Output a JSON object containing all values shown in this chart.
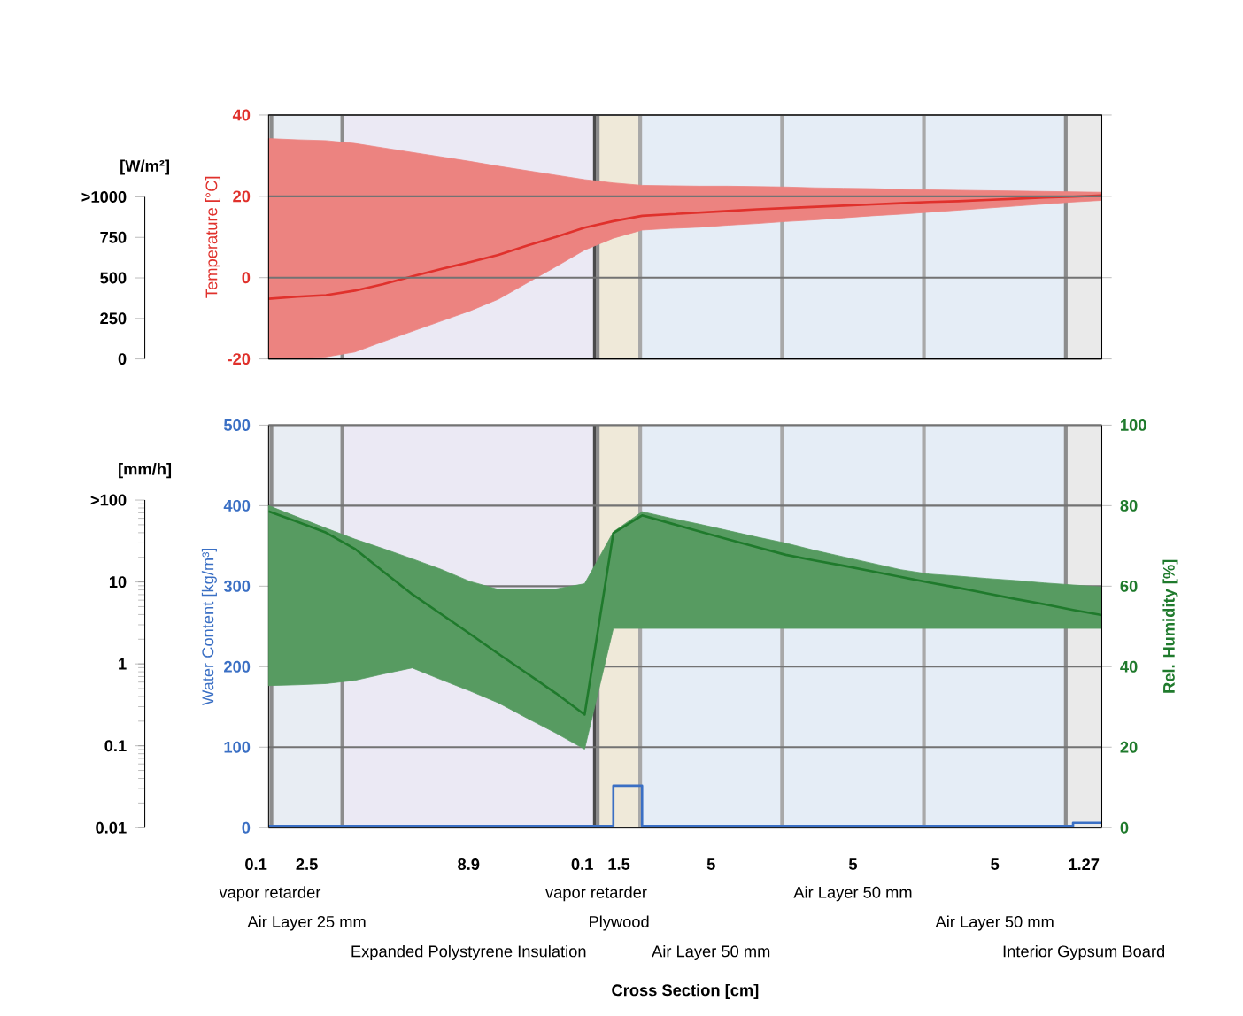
{
  "chart_data": [
    {
      "type": "line",
      "ylabel": "Temperature [°C]",
      "y3label": "[W/m²]",
      "categories": [
        null,
        null,
        null,
        null,
        null,
        null,
        null,
        null,
        null,
        null,
        null,
        null,
        null,
        null,
        null,
        null,
        null,
        null,
        null,
        null,
        null,
        null,
        null,
        null,
        null,
        null,
        null,
        null,
        null,
        null
      ],
      "series": [
        {
          "color": "#e0312c",
          "values": [
            -5.2,
            -4.7,
            -4.3,
            -3.2,
            -1.6,
            0.3,
            2.1,
            3.8,
            5.6,
            7.9,
            10.0,
            12.3,
            13.9,
            15.2,
            15.6,
            16.0,
            16.4,
            16.8,
            17.1,
            17.4,
            17.7,
            18.0,
            18.3,
            18.6,
            18.8,
            19.1,
            19.4,
            19.7,
            19.9,
            20.2
          ],
          "upper": [
            34.2,
            33.9,
            33.7,
            33.0,
            31.9,
            30.8,
            29.7,
            28.6,
            27.4,
            26.3,
            25.2,
            24.1,
            23.3,
            22.7,
            22.6,
            22.5,
            22.5,
            22.4,
            22.3,
            22.1,
            22.0,
            21.9,
            21.7,
            21.6,
            21.5,
            21.4,
            21.3,
            21.2,
            21.1,
            21.0
          ],
          "lower": [
            -20,
            -19.8,
            -19.5,
            -18.3,
            -15.7,
            -13.2,
            -10.7,
            -8.2,
            -5.3,
            -1.3,
            2.7,
            6.8,
            9.7,
            11.7,
            12.1,
            12.4,
            12.9,
            13.3,
            13.8,
            14.2,
            14.7,
            15.2,
            15.6,
            16.1,
            16.6,
            17.1,
            17.6,
            18.1,
            18.6,
            19.0
          ]
        }
      ],
      "ylim": [
        -20,
        40
      ],
      "yticks": [
        -20,
        0,
        20,
        40
      ],
      "y3lim": [
        0,
        1000
      ],
      "y3ticks": [
        0,
        250,
        500,
        750,
        {
          "value": 1000,
          "label": ">1000"
        }
      ],
      "grid": "y"
    },
    {
      "type": "line",
      "ylabel": "Water Content [kg/m³]",
      "y2label": "Rel. Humidity [%]",
      "y3label": "[mm/h]",
      "xlabel": "Cross Section [cm]",
      "categories": [
        null,
        null,
        null,
        null,
        null,
        null,
        null,
        null,
        null,
        null,
        null,
        null,
        null,
        null,
        null,
        null,
        null,
        null,
        null,
        null,
        null,
        null,
        null,
        null,
        null,
        null,
        null,
        null,
        null,
        null
      ],
      "series": [
        {
          "color": "#3a6fc4",
          "type": "step",
          "values": [
            2,
            2,
            2,
            2,
            2,
            2,
            2,
            2,
            2,
            2,
            2,
            2,
            52,
            2,
            2,
            2,
            2,
            2,
            2,
            2,
            2,
            2,
            2,
            2,
            2,
            2,
            2,
            2,
            6,
            6
          ]
        },
        {
          "color": "#1f7a2c",
          "axis": "y2",
          "values": [
            78.6,
            76.0,
            73.3,
            69.3,
            63.6,
            58.0,
            53.1,
            48.2,
            43.2,
            38.3,
            33.4,
            28.1,
            73.2,
            77.6,
            75.6,
            73.6,
            71.6,
            69.7,
            67.8,
            66.4,
            65.1,
            63.7,
            62.3,
            60.9,
            59.6,
            58.2,
            56.8,
            55.5,
            54.1,
            52.8
          ],
          "upper": [
            80,
            77.2,
            74.4,
            71.7,
            69.3,
            66.8,
            64.2,
            61.2,
            59.2,
            59.2,
            59.3,
            60.6,
            73.5,
            78.5,
            76.9,
            75.4,
            73.8,
            72.2,
            70.7,
            68.9,
            67.3,
            65.7,
            64.1,
            63.0,
            62.5,
            61.9,
            61.4,
            60.8,
            60.3,
            59.8
          ],
          "lower": [
            35.3,
            35.5,
            35.8,
            36.6,
            38.2,
            39.7,
            36.8,
            34.0,
            31.0,
            27.2,
            23.5,
            19.5,
            49.5,
            49.5,
            49.5,
            49.5,
            49.5,
            49.5,
            49.5,
            49.5,
            49.5,
            49.5,
            49.5,
            49.5,
            49.5,
            49.5,
            49.5,
            49.5,
            49.5,
            49.5
          ]
        }
      ],
      "ylim": [
        0,
        500
      ],
      "yticks": [
        0,
        100,
        200,
        300,
        400,
        500
      ],
      "y2lim": [
        0,
        100
      ],
      "y2ticks": [
        0,
        20,
        40,
        60,
        80,
        100
      ],
      "y3lim": [
        0.01,
        100
      ],
      "y3ticks": [
        0.01,
        0.1,
        1,
        10,
        {
          "value": 100,
          "label": ">100"
        }
      ],
      "log": "y3",
      "grid": "y",
      "annotations": [
        "0.1",
        "2.5",
        "8.9",
        "0.1",
        "1.5",
        "5",
        "5",
        "5",
        "1.27",
        "vapor retarder",
        "Air Layer 25 mm",
        "Expanded Polystyrene Insulation",
        "vapor retarder",
        "Plywood",
        "Air Layer 50 mm",
        "Air Layer 50 mm",
        "Air Layer 50 mm",
        "Interior Gypsum Board"
      ]
    }
  ]
}
